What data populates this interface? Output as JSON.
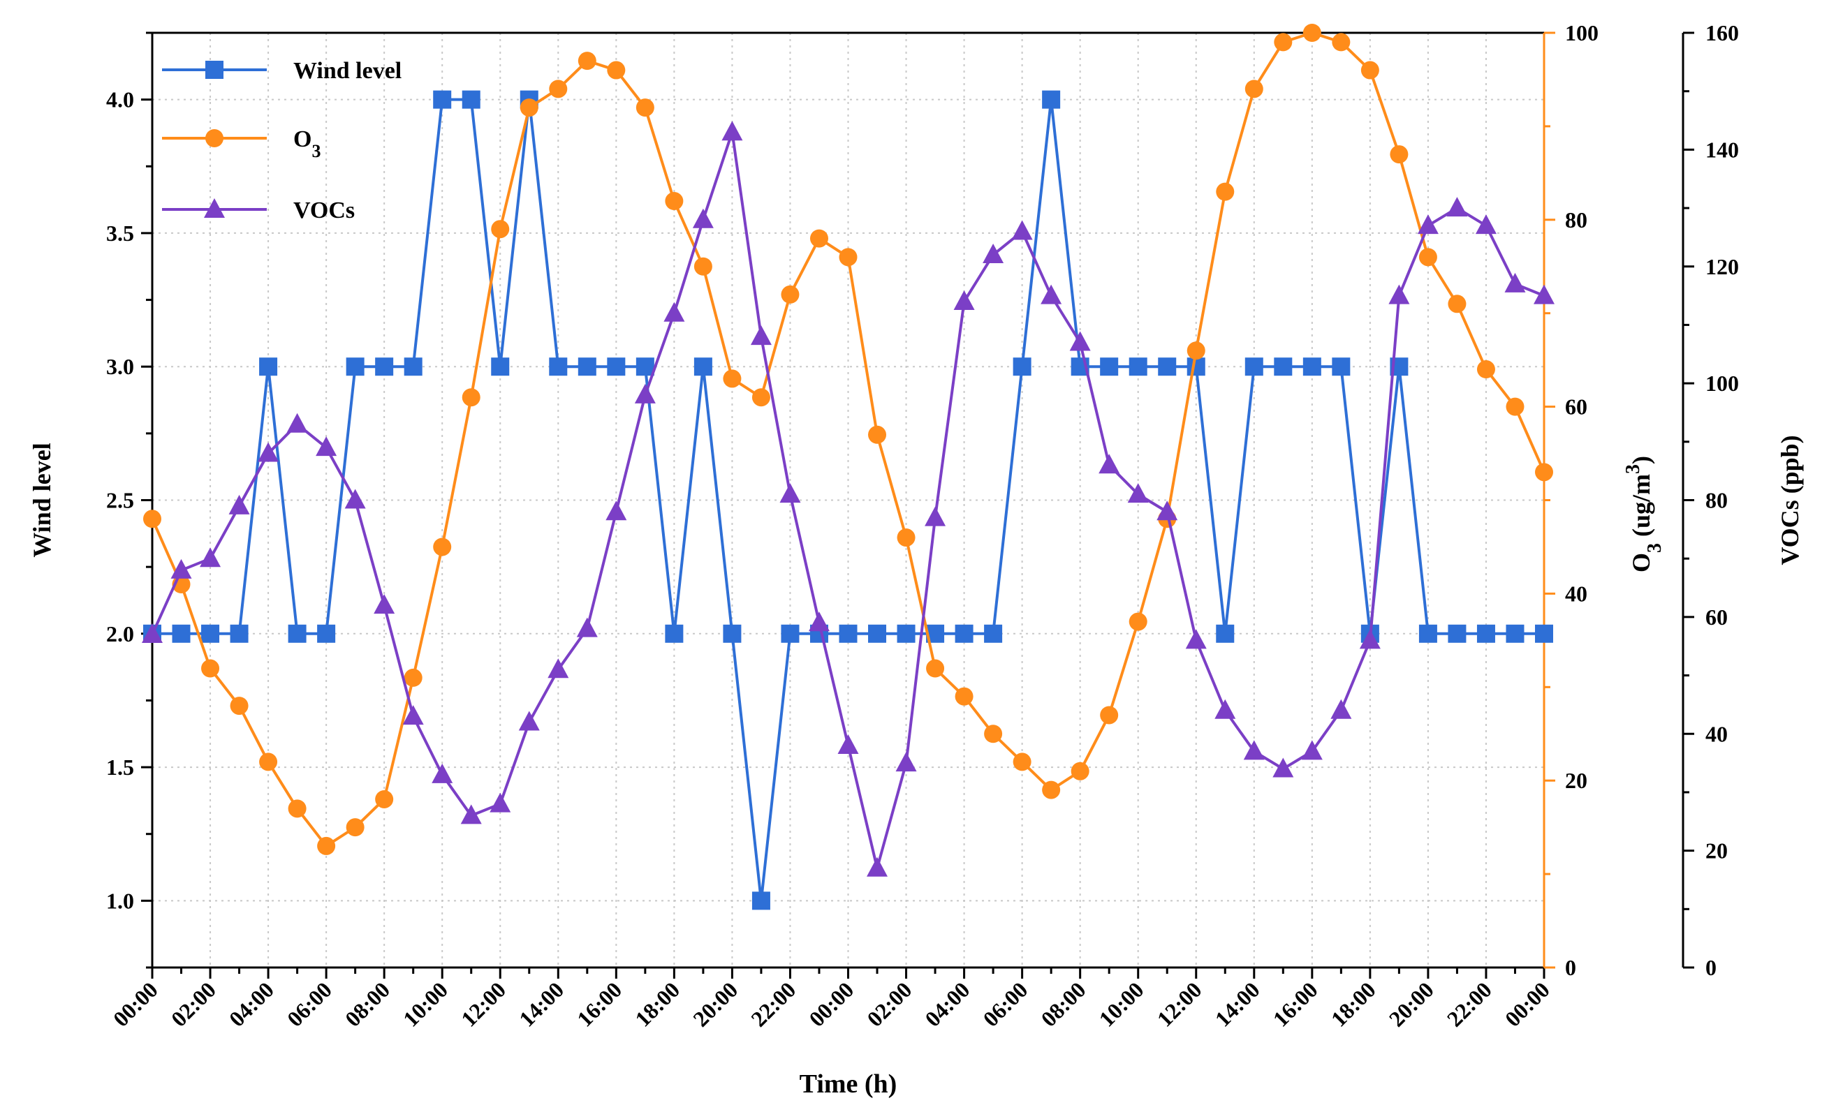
{
  "chart_data": {
    "type": "line",
    "title": "",
    "xlabel": "Time (h)",
    "x_tick_labels": [
      "00:00",
      "02:00",
      "04:00",
      "06:00",
      "08:00",
      "10:00",
      "12:00",
      "14:00",
      "16:00",
      "18:00",
      "20:00",
      "22:00",
      "00:00",
      "02:00",
      "04:00",
      "06:00",
      "08:00",
      "10:00",
      "12:00",
      "14:00",
      "16:00",
      "18:00",
      "20:00",
      "22:00",
      "00:00"
    ],
    "x_hours": [
      0,
      1,
      2,
      3,
      4,
      5,
      6,
      7,
      8,
      9,
      10,
      11,
      12,
      13,
      14,
      15,
      16,
      17,
      18,
      19,
      20,
      21,
      22,
      23,
      24,
      25,
      26,
      27,
      28,
      29,
      30,
      31,
      32,
      33,
      34,
      35,
      36,
      37,
      38,
      39,
      40,
      41,
      42,
      43,
      44,
      45,
      46,
      47,
      48
    ],
    "axes": {
      "wind": {
        "label": "Wind level",
        "ylim": [
          0.75,
          4.25
        ],
        "ticks": [
          1.0,
          1.5,
          2.0,
          2.5,
          3.0,
          3.5,
          4.0
        ],
        "tick_labels": [
          "1.0",
          "1.5",
          "2.0",
          "2.5",
          "3.0",
          "3.5",
          "4.0"
        ],
        "color": "#000000"
      },
      "o3": {
        "label": "O3 (ug/m3)",
        "label_main": "O",
        "label_sub": "3",
        "label_rest": " (ug/m",
        "label_sup": "3",
        "label_end": ")",
        "ylim": [
          0,
          100
        ],
        "ticks": [
          0,
          20,
          40,
          60,
          80,
          100
        ],
        "tick_labels": [
          "0",
          "20",
          "40",
          "60",
          "80",
          "100"
        ],
        "color": "#FF8C1A"
      },
      "vocs": {
        "label": "VOCs (ppb)",
        "ylim": [
          0,
          160
        ],
        "ticks": [
          0,
          20,
          40,
          60,
          80,
          100,
          120,
          140,
          160
        ],
        "tick_labels": [
          "0",
          "20",
          "40",
          "60",
          "80",
          "100",
          "120",
          "140",
          "160"
        ],
        "color": "#000000"
      }
    },
    "series": [
      {
        "name": "Wind level",
        "axis": "wind",
        "marker": "square",
        "color": "#2E6FD6",
        "values": [
          2,
          2,
          2,
          2,
          3,
          2,
          2,
          3,
          3,
          3,
          4,
          4,
          3,
          4,
          3,
          3,
          3,
          3,
          2,
          3,
          2,
          1,
          2,
          2,
          2,
          2,
          2,
          2,
          2,
          2,
          3,
          4,
          3,
          3,
          3,
          3,
          3,
          2,
          3,
          3,
          3,
          3,
          2,
          3,
          2,
          2,
          2,
          2,
          2
        ]
      },
      {
        "name": "O3",
        "legend_main": "O",
        "legend_sub": "3",
        "axis": "o3",
        "marker": "circle",
        "color": "#FF8C1A",
        "values": [
          48,
          41,
          32,
          28,
          22,
          17,
          13,
          15,
          18,
          31,
          45,
          61,
          79,
          92,
          94,
          97,
          96,
          92,
          82,
          75,
          63,
          61,
          72,
          78,
          76,
          57,
          46,
          32,
          29,
          25,
          22,
          19,
          21,
          27,
          37,
          48,
          66,
          83,
          94,
          99,
          100,
          99,
          96,
          87,
          76,
          71,
          64,
          60,
          53
        ]
      },
      {
        "name": "VOCs",
        "axis": "vocs",
        "marker": "triangle",
        "color": "#7B3FC6",
        "values": [
          57,
          68,
          70,
          79,
          88,
          93,
          89,
          80,
          62,
          43,
          33,
          26,
          28,
          42,
          51,
          58,
          78,
          98,
          112,
          128,
          143,
          108,
          81,
          59,
          38,
          17,
          35,
          77,
          114,
          122,
          126,
          115,
          107,
          86,
          81,
          78,
          56,
          44,
          37,
          34,
          37,
          44,
          56,
          115,
          127,
          130,
          127,
          117,
          115
        ]
      }
    ]
  }
}
